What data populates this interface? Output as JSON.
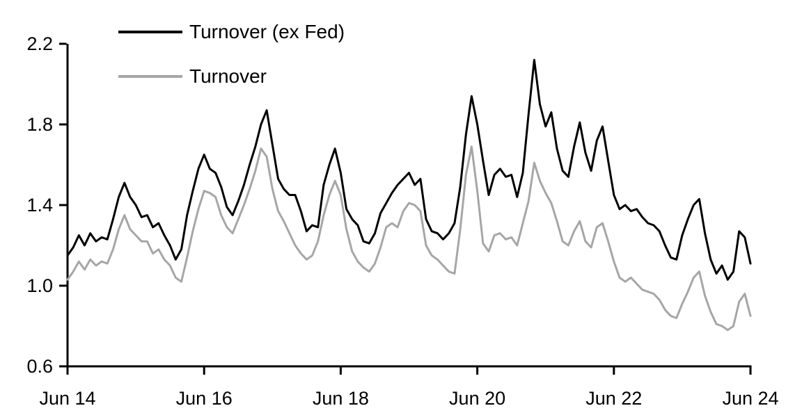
{
  "figure": {
    "background_color": "#ffffff",
    "text_color": "#000000",
    "axis_color": "#000000"
  },
  "chart_data": {
    "type": "line",
    "title": "",
    "xlabel": "",
    "ylabel": "",
    "grid": false,
    "legend_position": "top-left inside plot",
    "x_axis": {
      "tick_labels": [
        "Jun 14",
        "Jun 16",
        "Jun 18",
        "Jun 20",
        "Jun 22",
        "Jun 24"
      ],
      "range": [
        "Jun 2014",
        "Jun 2024"
      ],
      "sampling": "monthly estimates, 121 points from Jun 2014 to Jun 2024"
    },
    "y_axis": {
      "tick_labels": [
        "2.2",
        "1.8",
        "1.4",
        "1.0",
        "0.6"
      ],
      "ylim": [
        0.6,
        2.2
      ]
    },
    "series": [
      {
        "name": "Turnover (ex Fed)",
        "color": "#000000",
        "values": [
          1.15,
          1.19,
          1.25,
          1.2,
          1.26,
          1.22,
          1.24,
          1.23,
          1.33,
          1.44,
          1.51,
          1.44,
          1.4,
          1.34,
          1.35,
          1.29,
          1.31,
          1.25,
          1.2,
          1.13,
          1.18,
          1.35,
          1.47,
          1.58,
          1.65,
          1.58,
          1.56,
          1.49,
          1.39,
          1.35,
          1.42,
          1.5,
          1.6,
          1.69,
          1.8,
          1.87,
          1.7,
          1.53,
          1.48,
          1.45,
          1.45,
          1.37,
          1.27,
          1.3,
          1.29,
          1.5,
          1.6,
          1.68,
          1.56,
          1.38,
          1.33,
          1.3,
          1.22,
          1.21,
          1.26,
          1.36,
          1.41,
          1.46,
          1.5,
          1.53,
          1.56,
          1.5,
          1.53,
          1.33,
          1.27,
          1.26,
          1.23,
          1.26,
          1.31,
          1.49,
          1.75,
          1.94,
          1.8,
          1.62,
          1.45,
          1.55,
          1.58,
          1.54,
          1.55,
          1.44,
          1.56,
          1.85,
          2.12,
          1.9,
          1.79,
          1.86,
          1.68,
          1.57,
          1.54,
          1.69,
          1.81,
          1.66,
          1.57,
          1.72,
          1.79,
          1.62,
          1.45,
          1.38,
          1.4,
          1.37,
          1.38,
          1.34,
          1.31,
          1.3,
          1.27,
          1.2,
          1.14,
          1.13,
          1.25,
          1.33,
          1.4,
          1.43,
          1.26,
          1.13,
          1.06,
          1.1,
          1.03,
          1.07,
          1.27,
          1.24,
          1.11
        ]
      },
      {
        "name": "Turnover",
        "color": "#a6a6a6",
        "values": [
          1.03,
          1.07,
          1.12,
          1.08,
          1.13,
          1.1,
          1.12,
          1.11,
          1.18,
          1.28,
          1.35,
          1.28,
          1.25,
          1.22,
          1.22,
          1.16,
          1.18,
          1.13,
          1.1,
          1.04,
          1.02,
          1.14,
          1.27,
          1.38,
          1.47,
          1.46,
          1.44,
          1.35,
          1.29,
          1.26,
          1.33,
          1.4,
          1.48,
          1.57,
          1.68,
          1.64,
          1.48,
          1.37,
          1.32,
          1.26,
          1.2,
          1.16,
          1.13,
          1.15,
          1.22,
          1.35,
          1.45,
          1.52,
          1.45,
          1.28,
          1.17,
          1.12,
          1.09,
          1.07,
          1.11,
          1.19,
          1.29,
          1.31,
          1.29,
          1.37,
          1.41,
          1.4,
          1.37,
          1.2,
          1.15,
          1.13,
          1.1,
          1.07,
          1.06,
          1.28,
          1.55,
          1.69,
          1.47,
          1.21,
          1.17,
          1.25,
          1.26,
          1.23,
          1.24,
          1.2,
          1.31,
          1.42,
          1.61,
          1.52,
          1.46,
          1.41,
          1.32,
          1.22,
          1.2,
          1.27,
          1.32,
          1.22,
          1.19,
          1.29,
          1.31,
          1.22,
          1.12,
          1.04,
          1.02,
          1.04,
          1.01,
          0.98,
          0.97,
          0.96,
          0.93,
          0.88,
          0.85,
          0.84,
          0.91,
          0.97,
          1.04,
          1.07,
          0.95,
          0.87,
          0.81,
          0.8,
          0.78,
          0.8,
          0.92,
          0.96,
          0.85
        ]
      }
    ]
  }
}
